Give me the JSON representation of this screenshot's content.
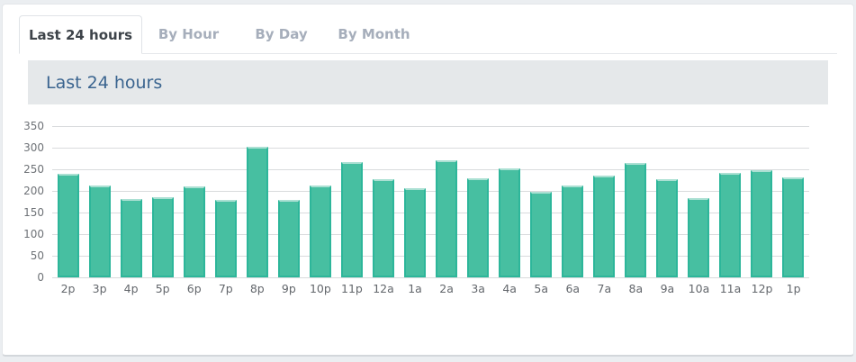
{
  "tabs": [
    {
      "label": "Last 24 hours",
      "active": true
    },
    {
      "label": "By Hour",
      "active": false
    },
    {
      "label": "By Day",
      "active": false
    },
    {
      "label": "By Month",
      "active": false
    }
  ],
  "panel": {
    "title": "Last 24 hours"
  },
  "chart_data": {
    "type": "bar",
    "title": "Last 24 hours",
    "categories": [
      "2p",
      "3p",
      "4p",
      "5p",
      "6p",
      "7p",
      "8p",
      "9p",
      "10p",
      "11p",
      "12a",
      "1a",
      "2a",
      "3a",
      "4a",
      "5a",
      "6a",
      "7a",
      "8a",
      "9a",
      "10a",
      "11a",
      "12p",
      "1p"
    ],
    "values": [
      240,
      213,
      182,
      186,
      210,
      180,
      303,
      179,
      213,
      266,
      228,
      207,
      270,
      230,
      253,
      197,
      213,
      236,
      265,
      228,
      184,
      241,
      248,
      231
    ],
    "xlabel": "",
    "ylabel": "",
    "ylim": [
      0,
      350
    ],
    "y_ticks": [
      0,
      50,
      100,
      150,
      200,
      250,
      300,
      350
    ],
    "grid": "horizontal",
    "legend": "none"
  },
  "colors": {
    "bar_fill": "#47bfa1",
    "bar_border": "#2db69a",
    "bar_top_highlight": "#abe0d3",
    "gridline": "#d9dbdd",
    "axis_label": "#6e7277",
    "header_bg": "#e5e8ea",
    "header_text": "#3a648f",
    "tab_active_text": "#3d4349",
    "tab_inactive_text": "#a6aebb",
    "page_bg": "#ebeef1",
    "panel_bg": "#ffffff"
  }
}
